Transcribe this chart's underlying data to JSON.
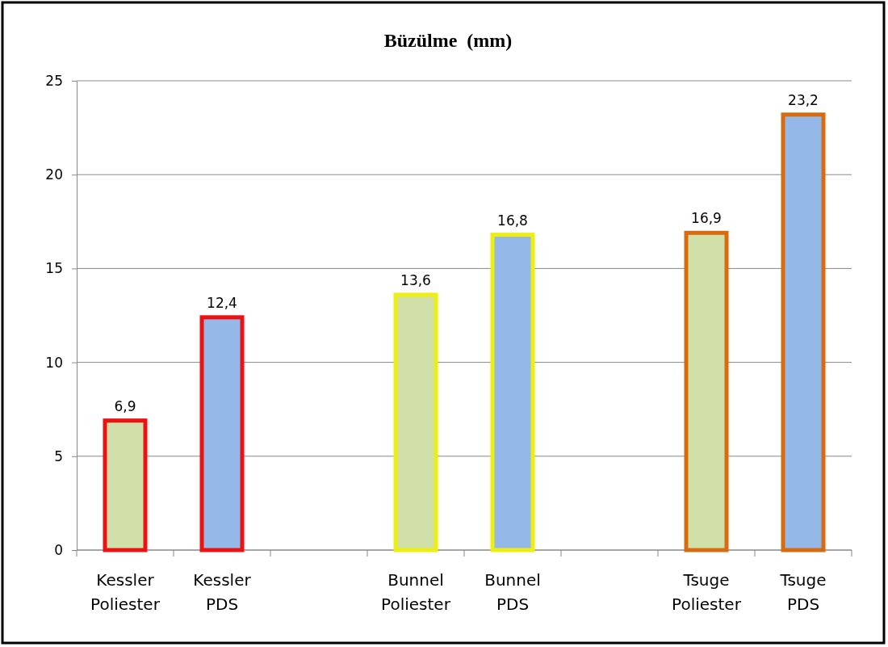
{
  "chart_data": {
    "type": "bar",
    "title": "Büzülme  (mm)",
    "categories": [
      "Kessler Poliester",
      "Kessler PDS",
      null,
      "Bunnel Poliester",
      "Bunnel PDS",
      null,
      "Tsuge Poliester",
      "Tsuge PDS"
    ],
    "values": [
      6.9,
      12.4,
      null,
      13.6,
      16.8,
      null,
      16.9,
      23.2
    ],
    "colors": [
      "#d0e0a8",
      "#94b8e8",
      null,
      "#d0e0a8",
      "#94b8e8",
      null,
      "#d0e0a8",
      "#94b8e8"
    ],
    "value_labels": [
      "6,9",
      "12,4",
      null,
      "13,6",
      "16,8",
      null,
      "16,9",
      "23,2"
    ],
    "ylim": [
      0,
      25
    ],
    "yticks": [
      0,
      5,
      10,
      15,
      20,
      25
    ],
    "grid": "y"
  }
}
